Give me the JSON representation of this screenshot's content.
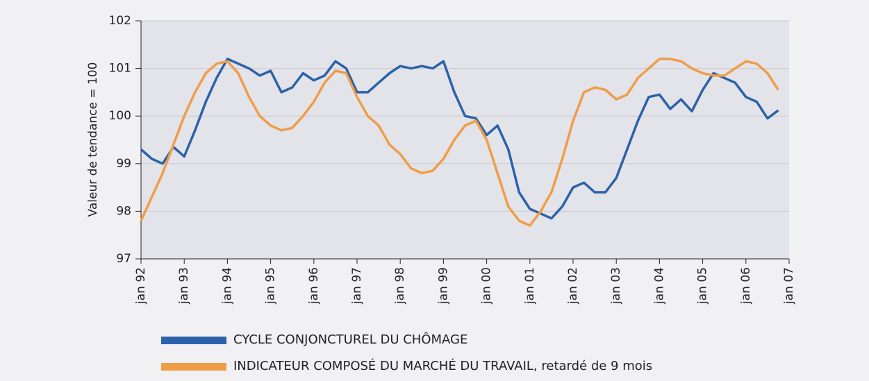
{
  "chart_data": {
    "type": "line",
    "ylabel": "Valeur de tendance = 100",
    "x": [
      0,
      3,
      6,
      9,
      12,
      15,
      18,
      21,
      24,
      27,
      30,
      33,
      36,
      39,
      42,
      45,
      48,
      51,
      54,
      57,
      60,
      63,
      66,
      69,
      72,
      75,
      78,
      81,
      84,
      87,
      90,
      93,
      96,
      99,
      102,
      105,
      108,
      111,
      114,
      117,
      120,
      123,
      126,
      129,
      132,
      135,
      138,
      141,
      144,
      147,
      150,
      153,
      156,
      159,
      162,
      165,
      168,
      171,
      174,
      177
    ],
    "xlim": [
      0,
      180
    ],
    "xticks": [
      {
        "value": 0,
        "label": "jan 92"
      },
      {
        "value": 12,
        "label": "jan 93"
      },
      {
        "value": 24,
        "label": "jan 94"
      },
      {
        "value": 36,
        "label": "jan 95"
      },
      {
        "value": 48,
        "label": "jan 96"
      },
      {
        "value": 60,
        "label": "jan 97"
      },
      {
        "value": 72,
        "label": "jan 98"
      },
      {
        "value": 84,
        "label": "jan 99"
      },
      {
        "value": 96,
        "label": "jan 00"
      },
      {
        "value": 108,
        "label": "jan 01"
      },
      {
        "value": 120,
        "label": "jan 02"
      },
      {
        "value": 132,
        "label": "jan 03"
      },
      {
        "value": 144,
        "label": "jan 04"
      },
      {
        "value": 156,
        "label": "jan 05"
      },
      {
        "value": 168,
        "label": "jan 06"
      },
      {
        "value": 180,
        "label": "jan 07"
      }
    ],
    "ylim": [
      97,
      102
    ],
    "yticks": [
      97,
      98,
      99,
      100,
      101,
      102
    ],
    "grid": true,
    "series": [
      {
        "name": "CYCLE CONJONCTUREL DU CHÔMAGE",
        "color": "#2b62a8",
        "values": [
          99.3,
          99.1,
          99.0,
          99.35,
          99.15,
          99.7,
          100.3,
          100.8,
          101.2,
          101.1,
          101.0,
          100.85,
          100.95,
          100.5,
          100.6,
          100.9,
          100.75,
          100.85,
          101.15,
          101.0,
          100.5,
          100.5,
          100.7,
          100.9,
          101.05,
          101.0,
          101.05,
          101.0,
          101.15,
          100.5,
          100.0,
          99.95,
          99.6,
          99.8,
          99.3,
          98.4,
          98.05,
          97.95,
          97.85,
          98.1,
          98.5,
          98.6,
          98.4,
          98.4,
          98.7,
          99.3,
          99.9,
          100.4,
          100.45,
          100.15,
          100.35,
          100.1,
          100.55,
          100.9,
          100.8,
          100.7,
          100.4,
          100.3,
          99.95,
          100.12
        ]
      },
      {
        "name": "INDICATEUR COMPOSÉ DU MARCHÉ DU TRAVAIL, retardé de 9 mois",
        "color": "#f09d48",
        "values": [
          97.8,
          98.3,
          98.8,
          99.4,
          100.0,
          100.5,
          100.9,
          101.1,
          101.15,
          100.9,
          100.4,
          100.0,
          99.8,
          99.7,
          99.75,
          100.0,
          100.3,
          100.7,
          100.95,
          100.9,
          100.4,
          100.0,
          99.8,
          99.4,
          99.2,
          98.9,
          98.8,
          98.85,
          99.1,
          99.5,
          99.8,
          99.9,
          99.5,
          98.8,
          98.1,
          97.8,
          97.7,
          98.0,
          98.4,
          99.1,
          99.9,
          100.5,
          100.6,
          100.55,
          100.35,
          100.45,
          100.8,
          101.0,
          101.2,
          101.2,
          101.15,
          101.0,
          100.9,
          100.85,
          100.85,
          101.0,
          101.15,
          101.1,
          100.9,
          100.55
        ]
      }
    ]
  }
}
